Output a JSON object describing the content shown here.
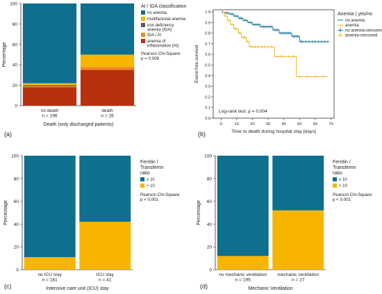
{
  "colors": {
    "teal": "#0e6f8e",
    "yellow": "#f7b500",
    "gray_dark": "#5a5a5a",
    "orange": "#f08c1e",
    "red": "#b8310f",
    "km_no_anemia": "#0e6f8e",
    "km_anemia": "#f2b418"
  },
  "chart_data": [
    {
      "type": "bar",
      "panel_label": "(a)",
      "xlabel": "Death (only discharged patients)",
      "ylabel": "Percentage",
      "ylim": [
        0,
        100
      ],
      "yticks": [
        "0",
        "20",
        "40",
        "60",
        "80",
        "100"
      ],
      "categories": [
        "no death",
        "death"
      ],
      "category_n": [
        "n = 196",
        "n = 26"
      ],
      "legend_title": "AI / IDA classificaiton",
      "stat_text": [
        "Pearson Chi-Square:",
        "p = 0.008"
      ],
      "series": [
        {
          "name": "anemia of inflammation (AI)",
          "color": "#b8310f",
          "values": [
            18,
            35
          ]
        },
        {
          "name": "IDA / AI",
          "color": "#f08c1e",
          "values": [
            1,
            3
          ]
        },
        {
          "name": "iron deficiency anemia (IDA)",
          "color": "#5a5a5a",
          "values": [
            1,
            0
          ]
        },
        {
          "name": "multifactorial anemia",
          "color": "#f7b500",
          "values": [
            2,
            12
          ]
        },
        {
          "name": "no anemia",
          "color": "#0e6f8e",
          "values": [
            78,
            50
          ]
        }
      ],
      "legend_items": [
        {
          "label": "no anemia",
          "color": "#0e6f8e"
        },
        {
          "label": "multifactorial anemia",
          "color": "#f7b500"
        },
        {
          "label": "iron deficiency\nanemia (IDA)",
          "color": "#5a5a5a"
        },
        {
          "label": "IDA / AI",
          "color": "#f08c1e"
        },
        {
          "label": "anemia of\ninflammation (AI)",
          "color": "#b8310f"
        }
      ]
    },
    {
      "type": "line",
      "panel_label": "(b)",
      "xlabel": "Time to death during hospital stay [days]",
      "ylabel": "Event-free survival",
      "xlim": [
        -5,
        72
      ],
      "ylim": [
        0,
        1.02
      ],
      "xticks": [
        "0",
        "10",
        "20",
        "30",
        "40",
        "50",
        "60",
        "70"
      ],
      "yticks": [
        "0.0",
        "0.1",
        "0.2",
        "0.3",
        "0.4",
        "0.5",
        "0.6",
        "0.7",
        "0.8",
        "0.9",
        "1.0"
      ],
      "legend_title": "Anemia | yes/no",
      "annotation": "Log-rank test: p = 0.004",
      "series": [
        {
          "name": "no anemia",
          "color": "#0e6f8e",
          "steps": [
            [
              0,
              1.0
            ],
            [
              2,
              0.99
            ],
            [
              5,
              0.98
            ],
            [
              8,
              0.96
            ],
            [
              11,
              0.94
            ],
            [
              14,
              0.92
            ],
            [
              17,
              0.9
            ],
            [
              20,
              0.88
            ],
            [
              25,
              0.86
            ],
            [
              33,
              0.83
            ],
            [
              37,
              0.8
            ],
            [
              45,
              0.77
            ],
            [
              50,
              0.72
            ],
            [
              55,
              0.72
            ],
            [
              68,
              0.72
            ]
          ],
          "censor_x": [
            1,
            3,
            4,
            6,
            7,
            9,
            10,
            12,
            13,
            15,
            16,
            18,
            19,
            21,
            22,
            23,
            24,
            26,
            27,
            28,
            29,
            30,
            31,
            32,
            34,
            35,
            36,
            38,
            39,
            40,
            41,
            42,
            43,
            44,
            46,
            47,
            48,
            49,
            51,
            52,
            54,
            56,
            58,
            60,
            62,
            64,
            66,
            68
          ]
        },
        {
          "name": "anemia",
          "color": "#f2b418",
          "steps": [
            [
              0,
              1.0
            ],
            [
              2,
              0.96
            ],
            [
              4,
              0.92
            ],
            [
              6,
              0.88
            ],
            [
              8,
              0.84
            ],
            [
              11,
              0.8
            ],
            [
              13,
              0.76
            ],
            [
              16,
              0.72
            ],
            [
              18,
              0.67
            ],
            [
              34,
              0.58
            ],
            [
              48,
              0.39
            ],
            [
              68,
              0.39
            ]
          ],
          "censor_x": [
            3,
            5,
            7,
            9,
            10,
            12,
            14,
            15,
            17,
            19,
            20,
            22,
            24,
            26,
            28,
            30,
            32,
            36,
            38,
            40,
            43,
            46,
            50,
            55,
            60,
            65
          ]
        }
      ],
      "legend_items": [
        {
          "label": "no anemia",
          "color": "#0e6f8e",
          "marker": "line"
        },
        {
          "label": "anemia",
          "color": "#f2b418",
          "marker": "line"
        },
        {
          "label": "no anemia-censored",
          "color": "#0e6f8e",
          "marker": "plus"
        },
        {
          "label": "anemia-censored",
          "color": "#f2b418",
          "marker": "plus"
        }
      ]
    },
    {
      "type": "bar",
      "panel_label": "(c)",
      "xlabel": "Intensive care unit (ICU) stay",
      "ylabel": "Percentage",
      "ylim": [
        0,
        100
      ],
      "yticks": [
        "0",
        "20",
        "40",
        "60",
        "80",
        "100"
      ],
      "categories": [
        "no ICU stay",
        "ICU stay"
      ],
      "category_n": [
        "n = 181",
        "n = 41"
      ],
      "legend_title": "Ferritin /\nTransferrin\nratio",
      "stat_text": [
        "Pearson Chi-Square:",
        "p < 0.001"
      ],
      "series": [
        {
          "name": "> 10",
          "color": "#f7b500",
          "values": [
            11,
            42
          ]
        },
        {
          "name": "≤ 10",
          "color": "#0e6f8e",
          "values": [
            89,
            58
          ]
        }
      ],
      "legend_items": [
        {
          "label": "≤ 10",
          "color": "#0e6f8e"
        },
        {
          "label": "> 10",
          "color": "#f7b500"
        }
      ]
    },
    {
      "type": "bar",
      "panel_label": "(d)",
      "xlabel": "Mechanic Ventilation",
      "ylabel": "Percentage",
      "ylim": [
        0,
        100
      ],
      "yticks": [
        "0",
        "20",
        "40",
        "60",
        "80",
        "100"
      ],
      "categories": [
        "no mechanic ventilation",
        "mechanic ventilation"
      ],
      "category_n": [
        "n = 195",
        "n = 27"
      ],
      "legend_title": "Ferritin /\nTransferrin\nratio",
      "stat_text": [
        "Pearson Chi-Square:",
        "p < 0.001"
      ],
      "series": [
        {
          "name": "> 10",
          "color": "#f7b500",
          "values": [
            12,
            52
          ]
        },
        {
          "name": "≤ 10",
          "color": "#0e6f8e",
          "values": [
            88,
            48
          ]
        }
      ],
      "legend_items": [
        {
          "label": "≤ 10",
          "color": "#0e6f8e"
        },
        {
          "label": "> 10",
          "color": "#f7b500"
        }
      ]
    }
  ]
}
